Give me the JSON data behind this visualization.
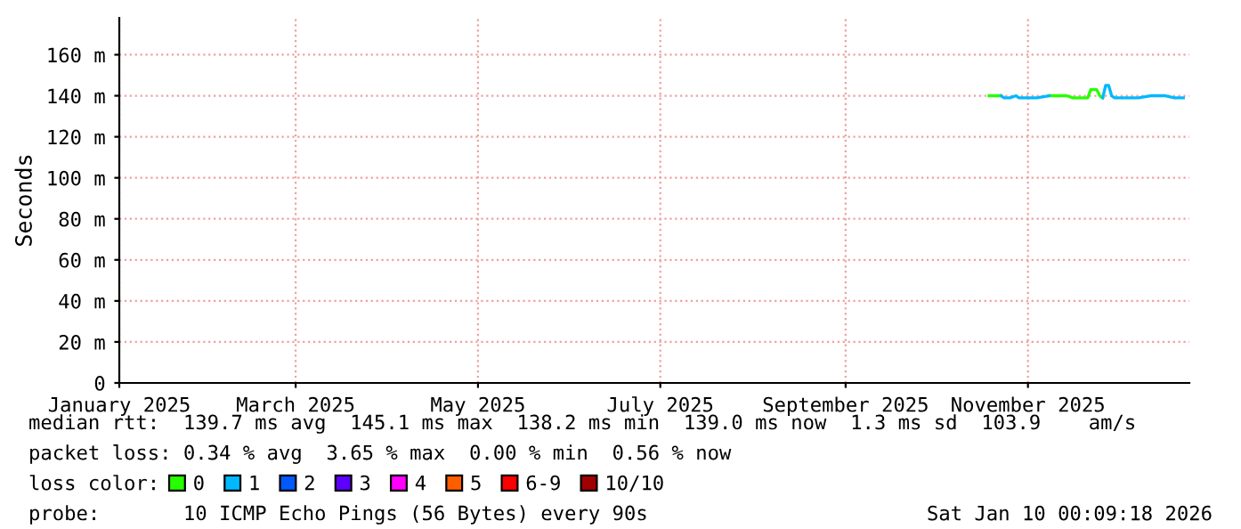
{
  "chart_data": {
    "type": "line",
    "ylabel": "Seconds",
    "legend_title": "loss color:",
    "legend": "bottom",
    "grid": true,
    "xlim": [
      "2025-01-01",
      "2025-12-25"
    ],
    "xticks": [
      {
        "value": "2025-01-01",
        "label": "January 2025"
      },
      {
        "value": "2025-03-01",
        "label": "March 2025"
      },
      {
        "value": "2025-05-01",
        "label": "May 2025"
      },
      {
        "value": "2025-07-01",
        "label": "July 2025"
      },
      {
        "value": "2025-09-01",
        "label": "September 2025"
      },
      {
        "value": "2025-11-01",
        "label": "November 2025"
      }
    ],
    "ylim": [
      0,
      178
    ],
    "yticks": [
      0,
      {
        "value": 20,
        "label": "20 m"
      },
      {
        "value": 40,
        "label": "40 m"
      },
      {
        "value": 60,
        "label": "60 m"
      },
      {
        "value": 80,
        "label": "80 m"
      },
      {
        "value": 100,
        "label": "100 m"
      },
      {
        "value": 120,
        "label": "120 m"
      },
      {
        "value": 140,
        "label": "140 m"
      },
      {
        "value": 160,
        "label": "160 m"
      }
    ],
    "series": [
      {
        "name": "0",
        "color": "#26ff00",
        "x": [
          "2025-10-19",
          "2025-10-23",
          "2025-10-24",
          "2025-11-08",
          "2025-11-12",
          "2025-11-14",
          "2025-11-16",
          "2025-11-21",
          "2025-11-22",
          "2025-11-24",
          "2025-11-25",
          "2025-11-26"
        ],
        "values": [
          140,
          140,
          null,
          140,
          140,
          140,
          139,
          139,
          143,
          143,
          140,
          139
        ]
      },
      {
        "name": "1",
        "color": "#00b8ff",
        "x": [
          "2025-10-23",
          "2025-10-24",
          "2025-10-26",
          "2025-10-28",
          "2025-10-29",
          "2025-11-04",
          "2025-11-08",
          "2025-11-09",
          "2025-11-26",
          "2025-11-27",
          "2025-11-28",
          "2025-11-29",
          "2025-11-30",
          "2025-12-08",
          "2025-12-12",
          "2025-12-14",
          "2025-12-17",
          "2025-12-20",
          "2025-12-23"
        ],
        "values": [
          140,
          139,
          139,
          140,
          139,
          139,
          140,
          null,
          139,
          145,
          145,
          140,
          139,
          139,
          140,
          140,
          140,
          139,
          139
        ]
      },
      {
        "name": "2",
        "color": "#0059ff"
      },
      {
        "name": "3",
        "color": "#5e00ff"
      },
      {
        "name": "4",
        "color": "#ff00ff"
      },
      {
        "name": "5",
        "color": "#ff5e00"
      },
      {
        "name": "6-9",
        "color": "#ff0000"
      },
      {
        "name": "10/10",
        "color": "#a10000"
      }
    ],
    "annotations": [
      "median rtt:  139.7 ms avg  145.1 ms max  138.2 ms min  139.0 ms now  1.3 ms sd  103.9    am/s",
      "packet loss: 0.34 % avg  3.65 % max  0.00 % min  0.56 % now",
      "probe:       10 ICMP Echo Pings (56 Bytes) every 90s",
      "Sat Jan 10 00:09:18 2026"
    ]
  }
}
